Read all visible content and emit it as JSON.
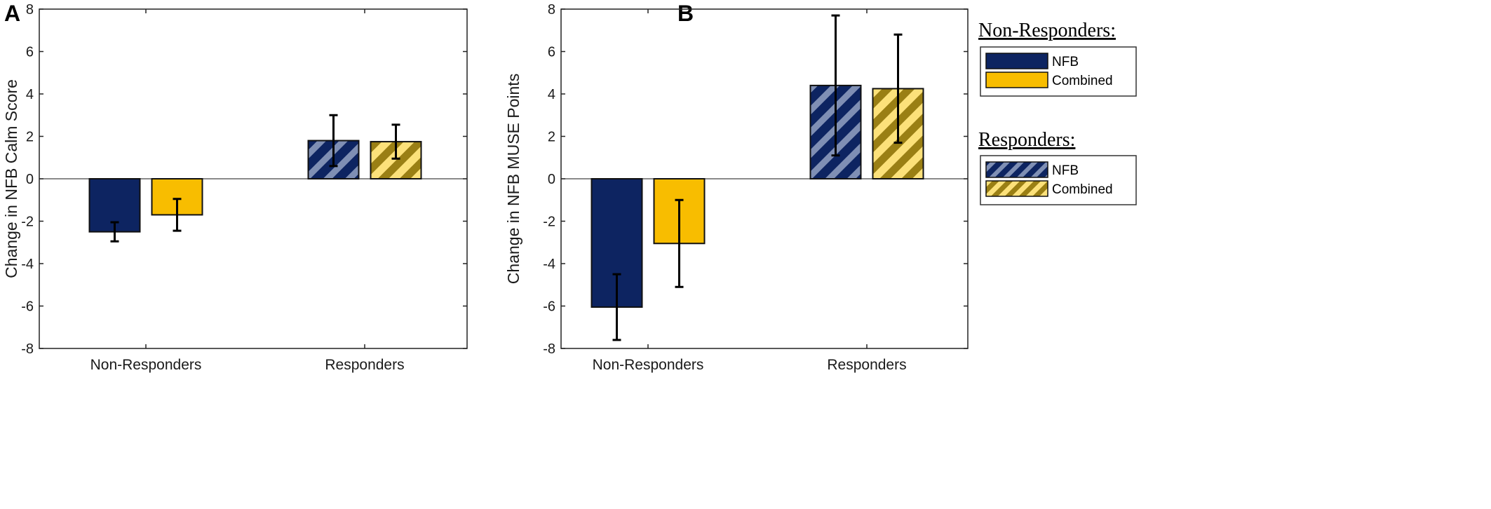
{
  "chart_data": [
    {
      "type": "bar",
      "panel": "A",
      "ylabel": "Change in NFB Calm Score",
      "xlabel": "",
      "ylim": [
        -8,
        8
      ],
      "yticks": [
        -8,
        -6,
        -4,
        -2,
        0,
        2,
        4,
        6,
        8
      ],
      "categories": [
        "Non-Responders",
        "Responders"
      ],
      "series": [
        {
          "name": "NFB",
          "group": "Non-Responders",
          "category": "Non-Responders",
          "value": -2.5,
          "err_low": -2.95,
          "err_high": -2.05,
          "color": "#0d2461",
          "hatched": false
        },
        {
          "name": "Combined",
          "group": "Non-Responders",
          "category": "Non-Responders",
          "value": -1.7,
          "err_low": -2.45,
          "err_high": -0.95,
          "color": "#f8bd00",
          "hatched": false
        },
        {
          "name": "NFB",
          "group": "Responders",
          "category": "Responders",
          "value": 1.8,
          "err_low": 0.6,
          "err_high": 3.0,
          "color": "#0d2461",
          "hatched": true
        },
        {
          "name": "Combined",
          "group": "Responders",
          "category": "Responders",
          "value": 1.75,
          "err_low": 0.95,
          "err_high": 2.55,
          "color": "#f8bd00",
          "hatched": true
        }
      ]
    },
    {
      "type": "bar",
      "panel": "B",
      "ylabel": "Change in NFB MUSE Points",
      "xlabel": "",
      "ylim": [
        -8,
        8
      ],
      "yticks": [
        -8,
        -6,
        -4,
        -2,
        0,
        2,
        4,
        6,
        8
      ],
      "categories": [
        "Non-Responders",
        "Responders"
      ],
      "series": [
        {
          "name": "NFB",
          "group": "Non-Responders",
          "category": "Non-Responders",
          "value": -6.05,
          "err_low": -7.6,
          "err_high": -4.5,
          "color": "#0d2461",
          "hatched": false
        },
        {
          "name": "Combined",
          "group": "Non-Responders",
          "category": "Non-Responders",
          "value": -3.05,
          "err_low": -5.1,
          "err_high": -1.0,
          "color": "#f8bd00",
          "hatched": false
        },
        {
          "name": "NFB",
          "group": "Responders",
          "category": "Responders",
          "value": 4.4,
          "err_low": 1.1,
          "err_high": 7.7,
          "color": "#0d2461",
          "hatched": true
        },
        {
          "name": "Combined",
          "group": "Responders",
          "category": "Responders",
          "value": 4.25,
          "err_low": 1.7,
          "err_high": 6.8,
          "color": "#f8bd00",
          "hatched": true
        }
      ]
    }
  ],
  "legend": {
    "groups": [
      {
        "title": "Non-Responders:",
        "items": [
          {
            "label": "NFB",
            "color": "#0d2461",
            "hatched": false
          },
          {
            "label": "Combined",
            "color": "#f8bd00",
            "hatched": false
          }
        ]
      },
      {
        "title": "Responders:",
        "items": [
          {
            "label": "NFB",
            "color": "#0d2461",
            "hatched": true
          },
          {
            "label": "Combined",
            "color": "#f8bd00",
            "hatched": true
          }
        ]
      }
    ]
  },
  "colors": {
    "nfb": "#0d2461",
    "nfb_hatch": "#7f8fb4",
    "combined": "#f8bd00",
    "combined_hatch_dark": "#9a7f14",
    "combined_hatch_light": "#fce17a"
  }
}
